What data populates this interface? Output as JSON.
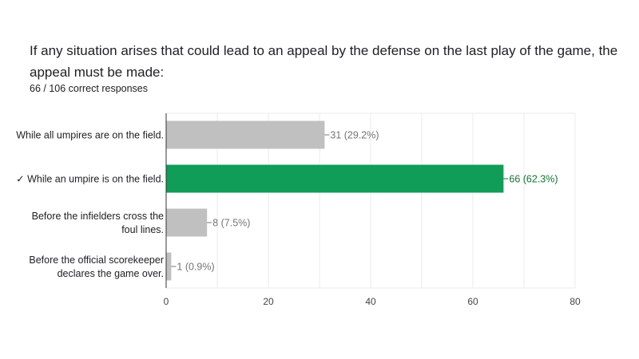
{
  "question": {
    "title": "If any situation arises that could lead to an appeal by the defense on the last play of the game, the appeal must be made:",
    "summary": "66 / 106 correct responses"
  },
  "colors": {
    "correct": "#0f9d58",
    "other": "#c0c0c0",
    "correct_label": "#137333",
    "other_label": "#757575"
  },
  "chart_data": {
    "type": "bar",
    "orientation": "horizontal",
    "categories": [
      [
        "While all umpires are on the field."
      ],
      [
        "✓ While an umpire is on the field."
      ],
      [
        "Before the infielders cross the",
        "foul lines."
      ],
      [
        "Before the official scorekeeper",
        "declares the game over."
      ]
    ],
    "values": [
      31,
      66,
      8,
      1
    ],
    "labels": [
      "31 (29.2%)",
      "66 (62.3%)",
      "8 (7.5%)",
      "1 (0.9%)"
    ],
    "correct_index": 1,
    "xlim": [
      0,
      80
    ],
    "xticks": [
      0,
      20,
      40,
      60,
      80
    ],
    "grid": true
  }
}
